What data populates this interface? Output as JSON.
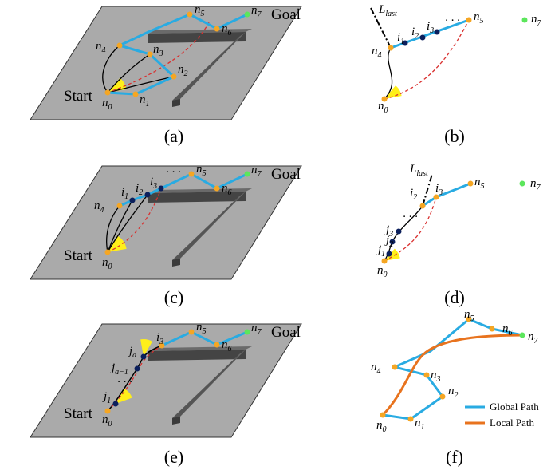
{
  "panels": [
    {
      "caption": "(a)",
      "start": "Start",
      "goal": "Goal",
      "labels": [
        {
          "text": "n",
          "sub": "0"
        },
        {
          "text": "n",
          "sub": "1"
        },
        {
          "text": "n",
          "sub": "2"
        },
        {
          "text": "n",
          "sub": "3"
        },
        {
          "text": "n",
          "sub": "4"
        },
        {
          "text": "n",
          "sub": "5"
        },
        {
          "text": "n",
          "sub": "6"
        },
        {
          "text": "n",
          "sub": "7"
        }
      ]
    },
    {
      "caption": "(b)",
      "labels": [
        {
          "text": "L",
          "sub": "last"
        },
        {
          "text": "i",
          "sub": "1"
        },
        {
          "text": "i",
          "sub": "2"
        },
        {
          "text": "i",
          "sub": "3"
        },
        {
          "text": "· · ·"
        },
        {
          "text": "n",
          "sub": "4"
        },
        {
          "text": "n",
          "sub": "0"
        },
        {
          "text": "n",
          "sub": "5"
        },
        {
          "text": "n",
          "sub": "7"
        }
      ]
    },
    {
      "caption": "(c)",
      "start": "Start",
      "goal": "Goal",
      "labels": [
        {
          "text": "n",
          "sub": "4"
        },
        {
          "text": "i",
          "sub": "1"
        },
        {
          "text": "i",
          "sub": "2"
        },
        {
          "text": "i",
          "sub": "3"
        },
        {
          "text": "· · ·"
        },
        {
          "text": "n",
          "sub": "5"
        },
        {
          "text": "n",
          "sub": "6"
        },
        {
          "text": "n",
          "sub": "7"
        },
        {
          "text": "n",
          "sub": "0"
        }
      ]
    },
    {
      "caption": "(d)",
      "labels": [
        {
          "text": "L",
          "sub": "last"
        },
        {
          "text": "i",
          "sub": "2"
        },
        {
          "text": "i",
          "sub": "3"
        },
        {
          "text": "n",
          "sub": "5"
        },
        {
          "text": "n",
          "sub": "7"
        },
        {
          "text": "· · ·"
        },
        {
          "text": "j",
          "sub": "3"
        },
        {
          "text": "j",
          "sub": "2"
        },
        {
          "text": "j",
          "sub": "1"
        },
        {
          "text": "n",
          "sub": "0"
        }
      ]
    },
    {
      "caption": "(e)",
      "start": "Start",
      "goal": "Goal",
      "labels": [
        {
          "text": "i",
          "sub": "3"
        },
        {
          "text": "j",
          "sub": "a"
        },
        {
          "text": "j",
          "sub": "a−1"
        },
        {
          "text": "· · ·"
        },
        {
          "text": "j",
          "sub": "1"
        },
        {
          "text": "n",
          "sub": "0"
        },
        {
          "text": "n",
          "sub": "5"
        },
        {
          "text": "n",
          "sub": "6"
        },
        {
          "text": "n",
          "sub": "7"
        }
      ]
    },
    {
      "caption": "(f)",
      "legend": [
        "Global Path",
        "Local Path"
      ],
      "labels": [
        {
          "text": "n",
          "sub": "0"
        },
        {
          "text": "n",
          "sub": "1"
        },
        {
          "text": "n",
          "sub": "2"
        },
        {
          "text": "n",
          "sub": "3"
        },
        {
          "text": "n",
          "sub": "4"
        },
        {
          "text": "n",
          "sub": "5"
        },
        {
          "text": "n",
          "sub": "6"
        },
        {
          "text": "n",
          "sub": "7"
        }
      ]
    }
  ]
}
